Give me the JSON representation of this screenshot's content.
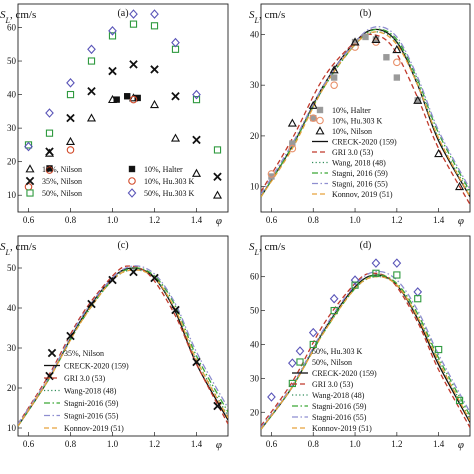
{
  "chart_data": [
    {
      "type": "scatter",
      "panel_label": "(a)",
      "ylabel": "S_L, cm/s",
      "xlabel": "φ",
      "xlim": [
        0.55,
        1.55
      ],
      "ylim": [
        5,
        67
      ],
      "xticks": [
        "0.6",
        "0.8",
        "1.0",
        "1.2",
        "1.4"
      ],
      "yticks": [
        "10",
        "20",
        "30",
        "40",
        "50",
        "60"
      ],
      "legend_position": "bottom",
      "series": [
        {
          "name": "10%, Nilson",
          "marker": "tri",
          "color": "#111111",
          "x": [
            0.7,
            0.8,
            0.9,
            1.0,
            1.1,
            1.2,
            1.3,
            1.4,
            1.5
          ],
          "y": [
            22.5,
            26,
            33,
            38.5,
            39,
            37,
            27,
            16.5,
            10
          ]
        },
        {
          "name": "35%, Nilson",
          "marker": "x",
          "color": "#111111",
          "x": [
            0.7,
            0.8,
            0.9,
            1.0,
            1.1,
            1.2,
            1.3,
            1.4,
            1.5
          ],
          "y": [
            23,
            33,
            41,
            47,
            49,
            47.5,
            39.5,
            26.5,
            15.5
          ]
        },
        {
          "name": "50%, Nilson",
          "marker": "square-open",
          "color": "#2e9a3e",
          "x": [
            0.6,
            0.7,
            0.8,
            0.9,
            1.0,
            1.1,
            1.2,
            1.3,
            1.4,
            1.5
          ],
          "y": [
            25,
            28.5,
            40,
            50,
            57.5,
            61,
            60.5,
            53.5,
            38.5,
            23.5
          ]
        },
        {
          "name": "10%, Halter",
          "marker": "square-filled",
          "color": "#111111",
          "x": [
            0.7,
            1.02,
            1.07,
            1.12
          ],
          "y": [
            18,
            38.5,
            39.5,
            39
          ]
        },
        {
          "name": "10%, Hu.303 K",
          "marker": "circle-open",
          "color": "#d24a2a",
          "x": [
            0.6,
            0.7,
            0.8,
            1.1
          ],
          "y": [
            12.5,
            17.5,
            23.5,
            38.5
          ]
        },
        {
          "name": "50%, Hu.303 K",
          "marker": "diamond-open",
          "color": "#5a55b8",
          "x": [
            0.6,
            0.7,
            0.8,
            0.9,
            1.0,
            1.1,
            1.2,
            1.3,
            1.4
          ],
          "y": [
            24.5,
            34.5,
            43.5,
            53.5,
            59,
            64,
            64,
            55.5,
            40
          ]
        }
      ]
    },
    {
      "type": "line",
      "panel_label": "(b)",
      "ylabel": "S_L, cm/s",
      "xlabel": "φ",
      "xlim": [
        0.55,
        1.55
      ],
      "ylim": [
        5,
        46
      ],
      "xticks": [
        "0.6",
        "0.8",
        "1.0",
        "1.2",
        "1.4"
      ],
      "yticks": [
        "10",
        "20",
        "30",
        "40"
      ],
      "legend_position": "bottom-left",
      "series": [
        {
          "name": "10%, Halter",
          "marker": "square-filled",
          "color": "#9a9a9a",
          "x": [
            0.6,
            0.7,
            0.8,
            0.9,
            1.0,
            1.05,
            1.1,
            1.15,
            1.2,
            1.3
          ],
          "y": [
            12,
            18.5,
            23.5,
            31.5,
            38.5,
            39.5,
            39,
            35.5,
            31.5,
            27
          ]
        },
        {
          "name": "10%, Hu.303 K",
          "marker": "circle-open",
          "color": "#e8906a",
          "x": [
            0.6,
            0.7,
            0.8,
            0.9,
            1.0,
            1.1,
            1.2
          ],
          "y": [
            12.5,
            17.5,
            23.5,
            30,
            37.5,
            38.5,
            34.5
          ]
        },
        {
          "name": "10%, Nilson",
          "marker": "tri",
          "color": "#111111",
          "x": [
            0.7,
            0.8,
            0.9,
            1.0,
            1.1,
            1.2,
            1.3,
            1.4,
            1.5
          ],
          "y": [
            22.5,
            26,
            33,
            38.5,
            39,
            37,
            27,
            16.5,
            10
          ]
        },
        {
          "name": "CRECK-2020 (159)",
          "line": "solid",
          "color": "#111111",
          "x": [
            0.55,
            0.7,
            0.85,
            1.0,
            1.1,
            1.2,
            1.3,
            1.4,
            1.55
          ],
          "y": [
            8,
            18,
            30,
            38.5,
            41,
            38.5,
            30,
            19,
            8
          ]
        },
        {
          "name": "GRI 3.0 (53)",
          "line": "dashed",
          "color": "#c0392b",
          "x": [
            0.55,
            0.7,
            0.85,
            1.0,
            1.08,
            1.18,
            1.3,
            1.4,
            1.55
          ],
          "y": [
            9,
            19.5,
            31.5,
            38.5,
            40,
            37.5,
            27.5,
            17.5,
            6.5
          ]
        },
        {
          "name": "Wang, 2018 (48)",
          "line": "dotted",
          "color": "#2e8b57",
          "x": [
            0.55,
            0.7,
            0.85,
            1.0,
            1.1,
            1.2,
            1.3,
            1.4,
            1.55
          ],
          "y": [
            8,
            18,
            29.5,
            38,
            40.5,
            38.5,
            30.5,
            19.5,
            8.5
          ]
        },
        {
          "name": "Stagni, 2016 (59)",
          "line": "dashdot",
          "color": "#3aa635",
          "x": [
            0.55,
            0.7,
            0.85,
            1.0,
            1.1,
            1.2,
            1.3,
            1.4,
            1.55
          ],
          "y": [
            8,
            18,
            29.5,
            38,
            41,
            39,
            31,
            20.5,
            9
          ]
        },
        {
          "name": "Stagni, 2016 (55)",
          "line": "dashdot",
          "color": "#8e8ed0",
          "x": [
            0.55,
            0.7,
            0.85,
            1.0,
            1.1,
            1.2,
            1.3,
            1.4,
            1.55
          ],
          "y": [
            8.5,
            18.5,
            30,
            38.5,
            41.5,
            39.5,
            31.5,
            21,
            9.5
          ]
        },
        {
          "name": "Konnov, 2019 (51)",
          "line": "dashed",
          "color": "#e6a23c",
          "x": [
            0.55,
            0.7,
            0.85,
            1.0,
            1.1,
            1.2,
            1.3,
            1.4,
            1.55
          ],
          "y": [
            8,
            17.5,
            29.5,
            38,
            40.5,
            38,
            30,
            19.5,
            8
          ]
        }
      ]
    },
    {
      "type": "line",
      "panel_label": "(c)",
      "ylabel": "S_L, cm/s",
      "xlabel": "φ",
      "xlim": [
        0.55,
        1.55
      ],
      "ylim": [
        8,
        58
      ],
      "xticks": [
        "0.6",
        "0.8",
        "1.0",
        "1.2",
        "1.4"
      ],
      "yticks": [
        "10",
        "20",
        "30",
        "40",
        "50"
      ],
      "legend_position": "bottom-center",
      "series": [
        {
          "name": "35%, Nilson",
          "marker": "x",
          "color": "#111111",
          "x": [
            0.7,
            0.8,
            0.9,
            1.0,
            1.1,
            1.2,
            1.3,
            1.4,
            1.5
          ],
          "y": [
            23,
            33,
            41,
            47,
            49,
            47.5,
            39.5,
            26.5,
            15.5
          ]
        },
        {
          "name": "CRECK-2020 (159)",
          "line": "solid",
          "color": "#111111",
          "x": [
            0.55,
            0.7,
            0.85,
            1.0,
            1.1,
            1.2,
            1.3,
            1.4,
            1.55
          ],
          "y": [
            10.5,
            22.5,
            37,
            47.5,
            50,
            47.5,
            39,
            26,
            12
          ]
        },
        {
          "name": "GRI 3.0 (53)",
          "line": "dashed",
          "color": "#c0392b",
          "x": [
            0.55,
            0.7,
            0.85,
            1.0,
            1.08,
            1.18,
            1.3,
            1.4,
            1.55
          ],
          "y": [
            11,
            23.5,
            38,
            48,
            50.5,
            48,
            38,
            26,
            11
          ]
        },
        {
          "name": "Wang-2018 (48)",
          "line": "dotted",
          "color": "#2e8b57",
          "x": [
            0.55,
            0.7,
            0.85,
            1.0,
            1.1,
            1.2,
            1.3,
            1.4,
            1.55
          ],
          "y": [
            10.5,
            22.5,
            37,
            47,
            49.5,
            47.5,
            39.5,
            27,
            13
          ]
        },
        {
          "name": "Stagni-2016 (59)",
          "line": "dashdot",
          "color": "#3aa635",
          "x": [
            0.55,
            0.7,
            0.85,
            1.0,
            1.1,
            1.2,
            1.3,
            1.4,
            1.55
          ],
          "y": [
            10.5,
            22.5,
            36.5,
            47,
            50,
            48,
            40.5,
            28,
            14
          ]
        },
        {
          "name": "Stagni-2016 (55)",
          "line": "dashdot",
          "color": "#8e8ed0",
          "x": [
            0.55,
            0.7,
            0.85,
            1.0,
            1.1,
            1.2,
            1.3,
            1.4,
            1.55
          ],
          "y": [
            11,
            23,
            37.5,
            47.5,
            50.5,
            48.5,
            41,
            29,
            15
          ]
        },
        {
          "name": "Konnov-2019 (51)",
          "line": "dashed",
          "color": "#e6a23c",
          "x": [
            0.55,
            0.7,
            0.85,
            1.0,
            1.1,
            1.2,
            1.3,
            1.4,
            1.55
          ],
          "y": [
            10.5,
            22.5,
            36.5,
            47,
            49.5,
            47.5,
            39.5,
            27,
            12.5
          ]
        }
      ]
    },
    {
      "type": "line",
      "panel_label": "(d)",
      "ylabel": "S_L, cm/s",
      "xlabel": "φ",
      "xlim": [
        0.55,
        1.55
      ],
      "ylim": [
        13,
        72
      ],
      "xticks": [
        "0.6",
        "0.8",
        "1.0",
        "1.2",
        "1.4"
      ],
      "yticks": [
        "20",
        "30",
        "40",
        "50",
        "60"
      ],
      "legend_position": "bottom-center",
      "series": [
        {
          "name": "50%, Hu.303 K",
          "marker": "diamond-open",
          "color": "#5a55b8",
          "x": [
            0.6,
            0.7,
            0.8,
            0.9,
            1.0,
            1.1,
            1.2,
            1.3
          ],
          "y": [
            24.5,
            34.5,
            43.5,
            53.5,
            59,
            64,
            64,
            55.5
          ]
        },
        {
          "name": "50%, Nilson",
          "marker": "square-open",
          "color": "#2e9a3e",
          "x": [
            0.7,
            0.8,
            0.9,
            1.0,
            1.1,
            1.2,
            1.3,
            1.4,
            1.5
          ],
          "y": [
            28.5,
            40,
            50,
            57.5,
            61,
            60.5,
            53.5,
            38.5,
            23.5
          ]
        },
        {
          "name": "CRECK-2020 (159)",
          "line": "solid",
          "color": "#111111",
          "x": [
            0.55,
            0.7,
            0.85,
            1.0,
            1.1,
            1.2,
            1.3,
            1.4,
            1.55
          ],
          "y": [
            15,
            27.5,
            44,
            57,
            60.5,
            57.5,
            47.5,
            34,
            17
          ]
        },
        {
          "name": "GRI 3.0 (53)",
          "line": "dashed",
          "color": "#c0392b",
          "x": [
            0.55,
            0.7,
            0.85,
            1.0,
            1.08,
            1.18,
            1.3,
            1.4,
            1.55
          ],
          "y": [
            16,
            29,
            46,
            58,
            61,
            58.5,
            46.5,
            32.5,
            15.5
          ]
        },
        {
          "name": "Wang-2018 (48)",
          "line": "dotted",
          "color": "#2e8b57",
          "x": [
            0.55,
            0.7,
            0.85,
            1.0,
            1.1,
            1.2,
            1.3,
            1.4,
            1.55
          ],
          "y": [
            15,
            27.5,
            44,
            56.5,
            60,
            57.5,
            48,
            35,
            18
          ]
        },
        {
          "name": "Stagni-2016 (59)",
          "line": "dashdot",
          "color": "#3aa635",
          "x": [
            0.55,
            0.7,
            0.85,
            1.0,
            1.1,
            1.2,
            1.3,
            1.4,
            1.55
          ],
          "y": [
            15,
            27.5,
            43.5,
            56.5,
            60.5,
            58,
            49,
            36,
            19
          ]
        },
        {
          "name": "Stagni-2016 (55)",
          "line": "dashdot",
          "color": "#8e8ed0",
          "x": [
            0.55,
            0.7,
            0.85,
            1.0,
            1.1,
            1.2,
            1.3,
            1.4,
            1.55
          ],
          "y": [
            15.5,
            28,
            44.5,
            57.5,
            61.5,
            59,
            50,
            37,
            20
          ]
        },
        {
          "name": "Konnov-2019 (51)",
          "line": "dashed",
          "color": "#e6a23c",
          "x": [
            0.55,
            0.7,
            0.85,
            1.0,
            1.1,
            1.2,
            1.3,
            1.4,
            1.55
          ],
          "y": [
            15,
            27.5,
            43.5,
            56.5,
            60,
            57.5,
            48,
            35,
            17.5
          ]
        }
      ]
    }
  ]
}
